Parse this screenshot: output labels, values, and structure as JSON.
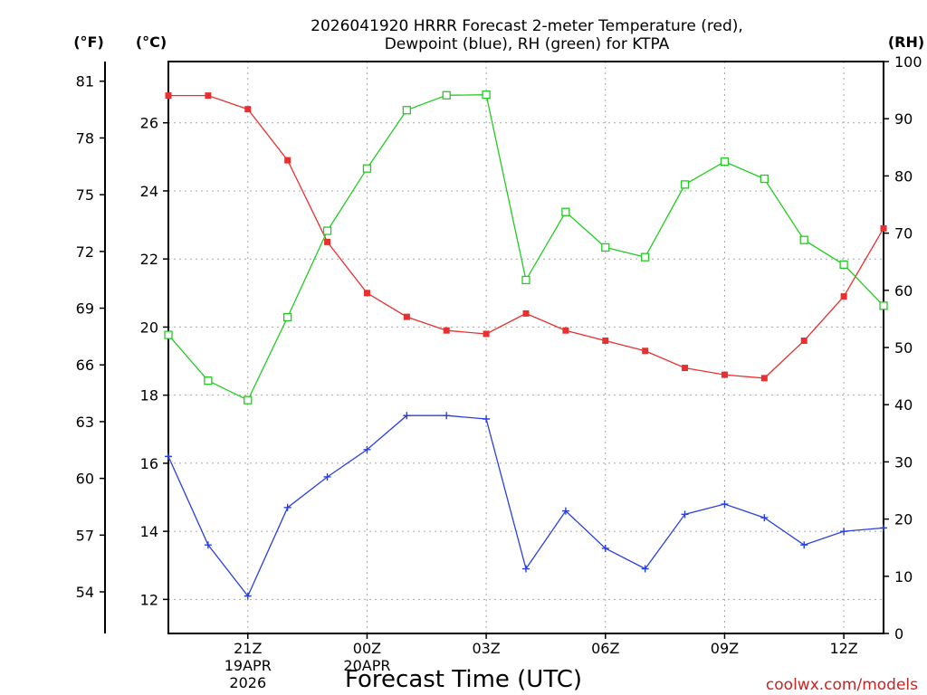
{
  "chart_data": {
    "type": "line",
    "title_line1": "2026041920 HRRR Forecast 2-meter Temperature (red),",
    "title_line2": "Dewpoint (blue), RH (green) for KTPA",
    "xlabel": "Forecast Time (UTC)",
    "credit": "coolwx.com/models",
    "units": {
      "fahrenheit": "(°F)",
      "celsius": "(°C)",
      "rh": "(RH)"
    },
    "x_hours": [
      19,
      20,
      21,
      22,
      23,
      24,
      25,
      26,
      27,
      28,
      29,
      30,
      31,
      32,
      33,
      34,
      35,
      36,
      37
    ],
    "x_range": [
      19,
      37
    ],
    "x_ticks": [
      {
        "hour": 21,
        "lines": [
          "21Z",
          "19APR",
          "2026"
        ]
      },
      {
        "hour": 24,
        "lines": [
          "00Z",
          "20APR"
        ]
      },
      {
        "hour": 27,
        "lines": [
          "03Z"
        ]
      },
      {
        "hour": 30,
        "lines": [
          "06Z"
        ]
      },
      {
        "hour": 33,
        "lines": [
          "09Z"
        ]
      },
      {
        "hour": 36,
        "lines": [
          "12Z"
        ]
      }
    ],
    "celsius_range": [
      11,
      27.8
    ],
    "celsius_ticks": [
      12,
      14,
      16,
      18,
      20,
      22,
      24,
      26
    ],
    "fahrenheit_ticks": [
      54,
      57,
      60,
      63,
      66,
      69,
      72,
      75,
      78,
      81
    ],
    "rh_range": [
      0,
      100
    ],
    "rh_ticks": [
      0,
      10,
      20,
      30,
      40,
      50,
      60,
      70,
      80,
      90,
      100
    ],
    "series": [
      {
        "name": "Temperature",
        "axis": "celsius",
        "color": "#e83030",
        "marker": "filled-square",
        "values": [
          26.8,
          26.8,
          26.4,
          24.9,
          22.5,
          21.0,
          20.3,
          19.9,
          19.8,
          20.4,
          19.9,
          19.6,
          19.3,
          18.8,
          18.6,
          18.5,
          19.6,
          20.9,
          22.9
        ]
      },
      {
        "name": "Dewpoint",
        "axis": "celsius",
        "color": "#2a3fe0",
        "marker": "plus",
        "values": [
          16.2,
          13.6,
          12.1,
          14.7,
          15.6,
          16.4,
          17.4,
          17.4,
          17.3,
          12.9,
          14.6,
          13.5,
          12.9,
          14.5,
          14.8,
          14.4,
          13.6,
          14.0,
          14.1
        ]
      },
      {
        "name": "RH",
        "axis": "rh",
        "color": "#22cc22",
        "marker": "open-square",
        "values": [
          52.2,
          44.2,
          40.8,
          55.3,
          70.4,
          81.3,
          91.5,
          94.1,
          94.2,
          61.8,
          73.7,
          67.5,
          65.8,
          78.5,
          82.5,
          79.5,
          68.8,
          64.5,
          57.3
        ]
      }
    ]
  }
}
